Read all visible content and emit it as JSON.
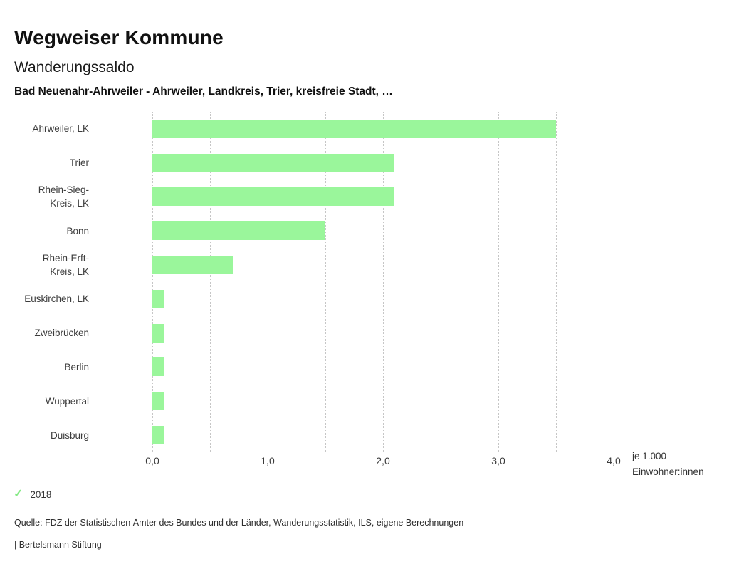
{
  "header": {
    "app_title": "Wegweiser Kommune",
    "chart_title": "Wanderungssaldo",
    "selection": "Bad Neuenahr-Ahrweiler - Ahrweiler, Landkreis, Trier, kreisfreie Stadt, …"
  },
  "chart_data": {
    "type": "bar",
    "orientation": "horizontal",
    "title": "Wanderungssaldo",
    "categories": [
      "Ahrweiler, LK",
      "Trier",
      "Rhein-Sieg-\nKreis, LK",
      "Bonn",
      "Rhein-Erft-\nKreis, LK",
      "Euskirchen, LK",
      "Zweibrücken",
      "Berlin",
      "Wuppertal",
      "Duisburg"
    ],
    "series": [
      {
        "name": "2018",
        "values": [
          3.5,
          2.1,
          2.1,
          1.5,
          0.7,
          0.1,
          0.1,
          0.1,
          0.1,
          0.1
        ]
      }
    ],
    "xlim": [
      -0.5,
      4.0
    ],
    "grid_step": 0.5,
    "xticks": [
      0.0,
      1.0,
      2.0,
      3.0,
      4.0
    ],
    "xtick_labels": [
      "0,0",
      "1,0",
      "2,0",
      "3,0",
      "4,0"
    ],
    "xlabel": "je 1.000 Einwohner:innen",
    "grid": true,
    "grid_style": "dotted",
    "legend_position": "bottom-left",
    "bar_color": "#9af69b"
  },
  "axis": {
    "unit_line1": "je 1.000",
    "unit_line2": "Einwohner:innen"
  },
  "legend": {
    "check_icon": "checkmark",
    "check_color": "#85e985",
    "year_label": "2018"
  },
  "footer": {
    "source": "Quelle: FDZ der Statistischen Ämter des Bundes und der Länder, Wanderungsstatistik, ILS, eigene Berechnungen",
    "branding": "| Bertelsmann Stiftung"
  },
  "colors": {
    "background": "#ffffff",
    "bar": "#9af69b",
    "gridline": "#c6c6c6",
    "text_primary": "#111111",
    "text_secondary": "#3c3c3c"
  }
}
